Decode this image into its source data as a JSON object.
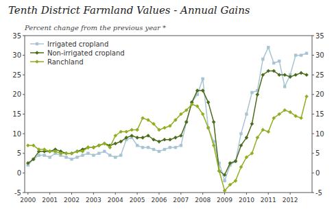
{
  "chart_data": {
    "type": "line",
    "title": "Tenth District Farmland Values - Annual Gains",
    "subtitle": "Percent change from the previous year *",
    "x": [
      2000.0,
      2000.25,
      2000.5,
      2000.75,
      2001.0,
      2001.25,
      2001.5,
      2001.75,
      2002.0,
      2002.25,
      2002.5,
      2002.75,
      2003.0,
      2003.25,
      2003.5,
      2003.75,
      2004.0,
      2004.25,
      2004.5,
      2004.75,
      2005.0,
      2005.25,
      2005.5,
      2005.75,
      2006.0,
      2006.25,
      2006.5,
      2006.75,
      2007.0,
      2007.25,
      2007.5,
      2007.75,
      2008.0,
      2008.25,
      2008.5,
      2008.75,
      2009.0,
      2009.25,
      2009.5,
      2009.75,
      2010.0,
      2010.25,
      2010.5,
      2010.75,
      2011.0,
      2011.25,
      2011.5,
      2011.75,
      2012.0,
      2012.25,
      2012.5,
      2012.75
    ],
    "xlim": [
      1999.85,
      2013.0
    ],
    "xticks": [
      2000,
      2001,
      2002,
      2003,
      2004,
      2005,
      2006,
      2007,
      2008,
      2009,
      2010,
      2011,
      2012
    ],
    "ylim": [
      -5,
      35
    ],
    "yticks": [
      -5,
      0,
      5,
      10,
      15,
      20,
      25,
      30,
      35
    ],
    "y2lim": [
      -5,
      35
    ],
    "y2ticks": [
      -5,
      0,
      5,
      10,
      15,
      20,
      25,
      30,
      35
    ],
    "grid": false,
    "legend": "top-left",
    "series": [
      {
        "name": "Irrigated cropland",
        "color": "#a8c4d4",
        "marker": "square",
        "values": [
          2.0,
          3.5,
          4.5,
          4.5,
          4.0,
          5.0,
          4.5,
          4.0,
          3.5,
          4.0,
          4.5,
          5.0,
          4.5,
          5.0,
          5.5,
          4.5,
          4.0,
          4.5,
          8.5,
          9.0,
          7.0,
          6.5,
          6.5,
          6.0,
          5.5,
          6.0,
          6.5,
          6.5,
          7.0,
          13.0,
          18.0,
          20.0,
          24.0,
          11.5,
          8.0,
          2.5,
          -2.0,
          2.0,
          3.0,
          10.0,
          15.0,
          20.5,
          21.0,
          29.0,
          32.0,
          28.0,
          28.5,
          22.0,
          25.0,
          30.0,
          30.0,
          30.5
        ]
      },
      {
        "name": "Non-irrigated cropland",
        "color": "#4a6b1a",
        "marker": "diamond",
        "values": [
          2.5,
          3.5,
          5.5,
          5.5,
          5.5,
          6.0,
          5.5,
          5.0,
          5.0,
          5.5,
          6.0,
          6.5,
          6.5,
          7.0,
          7.5,
          7.0,
          7.5,
          8.0,
          9.0,
          9.5,
          9.0,
          9.0,
          9.5,
          8.5,
          8.0,
          8.5,
          8.5,
          9.0,
          9.5,
          13.0,
          18.0,
          21.0,
          21.0,
          18.0,
          13.0,
          0.5,
          -0.5,
          2.5,
          3.0,
          7.0,
          9.0,
          12.5,
          20.0,
          25.0,
          26.0,
          26.0,
          25.0,
          25.0,
          24.5,
          25.0,
          25.5,
          25.0
        ]
      },
      {
        "name": "Ranchland",
        "color": "#8fae20",
        "marker": "diamond",
        "values": [
          7.0,
          7.0,
          6.0,
          6.0,
          5.5,
          5.5,
          5.0,
          5.0,
          5.0,
          5.5,
          5.5,
          6.5,
          6.5,
          7.0,
          7.5,
          6.5,
          9.5,
          10.5,
          10.5,
          11.0,
          11.0,
          14.0,
          13.5,
          12.5,
          11.0,
          11.5,
          12.0,
          13.5,
          15.0,
          16.0,
          17.5,
          17.0,
          15.0,
          11.5,
          7.0,
          0.5,
          -4.5,
          -3.0,
          -2.0,
          1.5,
          4.0,
          5.0,
          9.0,
          11.0,
          10.5,
          14.0,
          15.0,
          16.0,
          15.5,
          14.5,
          14.0,
          19.5
        ]
      }
    ]
  }
}
